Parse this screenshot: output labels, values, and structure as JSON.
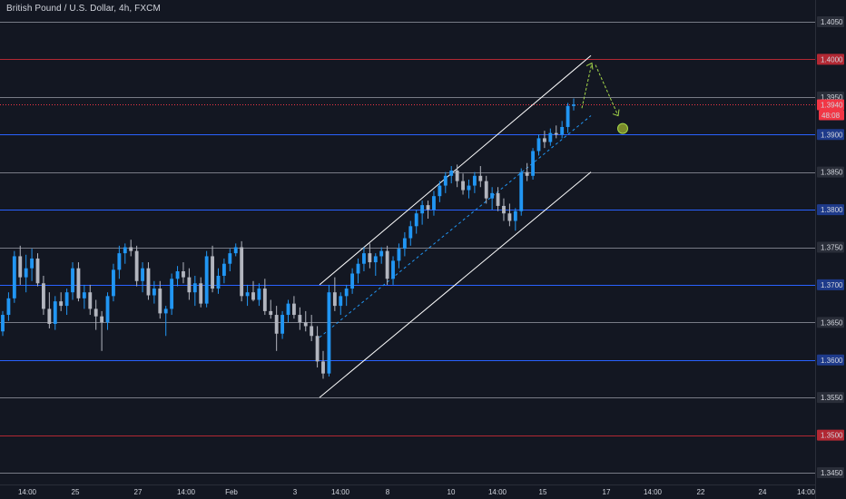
{
  "header": {
    "title": "British Pound / U.S. Dollar, 4h, FXCM"
  },
  "chart_data": {
    "type": "candlestick",
    "title": "British Pound / U.S. Dollar, 4h, FXCM",
    "ylim": [
      1.3438,
      1.4105
    ],
    "y_ticks": [
      {
        "value": 1.405,
        "label": "1.4050",
        "style": "gray"
      },
      {
        "value": 1.4,
        "label": "1.4000",
        "style": "red"
      },
      {
        "value": 1.395,
        "label": "1.3950",
        "style": "gray"
      },
      {
        "value": 1.39,
        "label": "1.3900",
        "style": "blue"
      },
      {
        "value": 1.385,
        "label": "1.3850",
        "style": "gray"
      },
      {
        "value": 1.38,
        "label": "1.3800",
        "style": "blue"
      },
      {
        "value": 1.375,
        "label": "1.3750",
        "style": "gray"
      },
      {
        "value": 1.37,
        "label": "1.3700",
        "style": "blue"
      },
      {
        "value": 1.365,
        "label": "1.3650",
        "style": "gray"
      },
      {
        "value": 1.36,
        "label": "1.3600",
        "style": "blue"
      },
      {
        "value": 1.355,
        "label": "1.3550",
        "style": "gray"
      },
      {
        "value": 1.35,
        "label": "1.3500",
        "style": "red"
      },
      {
        "value": 1.345,
        "label": "1.3450",
        "style": "gray"
      }
    ],
    "current_price": {
      "value": 1.394,
      "label": "1.3940",
      "countdown": "48:08"
    },
    "x_ticks": [
      "14:00",
      "25",
      "27",
      "14:00",
      "Feb",
      "3",
      "14:00",
      "8",
      "10",
      "14:00",
      "15",
      "17",
      "14:00",
      "22",
      "24",
      "14:00"
    ],
    "candles": [
      [
        1.3638,
        1.3665,
        1.3632,
        1.366
      ],
      [
        1.366,
        1.369,
        1.3652,
        1.3682
      ],
      [
        1.3682,
        1.3745,
        1.3676,
        1.3738
      ],
      [
        1.3738,
        1.3752,
        1.37,
        1.371
      ],
      [
        1.371,
        1.374,
        1.369,
        1.3722
      ],
      [
        1.3722,
        1.3748,
        1.3705,
        1.3735
      ],
      [
        1.3735,
        1.3742,
        1.3698,
        1.3702
      ],
      [
        1.3702,
        1.3712,
        1.366,
        1.3668
      ],
      [
        1.3668,
        1.369,
        1.3642,
        1.3648
      ],
      [
        1.3648,
        1.3685,
        1.364,
        1.3678
      ],
      [
        1.3678,
        1.369,
        1.3665,
        1.3672
      ],
      [
        1.3672,
        1.3695,
        1.366,
        1.369
      ],
      [
        1.369,
        1.373,
        1.368,
        1.3722
      ],
      [
        1.3722,
        1.373,
        1.3678,
        1.3682
      ],
      [
        1.3682,
        1.37,
        1.3668,
        1.369
      ],
      [
        1.369,
        1.37,
        1.366,
        1.3668
      ],
      [
        1.3668,
        1.368,
        1.364,
        1.3658
      ],
      [
        1.3658,
        1.3665,
        1.3612,
        1.365
      ],
      [
        1.365,
        1.369,
        1.364,
        1.3685
      ],
      [
        1.3685,
        1.3728,
        1.3678,
        1.372
      ],
      [
        1.372,
        1.3752,
        1.3708,
        1.3742
      ],
      [
        1.3742,
        1.3755,
        1.3728,
        1.375
      ],
      [
        1.375,
        1.376,
        1.3738,
        1.3745
      ],
      [
        1.3745,
        1.3752,
        1.3698,
        1.3705
      ],
      [
        1.3705,
        1.373,
        1.369,
        1.3722
      ],
      [
        1.3722,
        1.373,
        1.368,
        1.3686
      ],
      [
        1.3686,
        1.3705,
        1.3675,
        1.3695
      ],
      [
        1.3695,
        1.3705,
        1.3655,
        1.3662
      ],
      [
        1.3662,
        1.3672,
        1.3632,
        1.3668
      ],
      [
        1.3668,
        1.3715,
        1.366,
        1.3708
      ],
      [
        1.3708,
        1.3725,
        1.3698,
        1.3718
      ],
      [
        1.3718,
        1.373,
        1.3702,
        1.371
      ],
      [
        1.371,
        1.3722,
        1.368,
        1.369
      ],
      [
        1.369,
        1.3712,
        1.3672,
        1.3702
      ],
      [
        1.3702,
        1.371,
        1.367,
        1.3675
      ],
      [
        1.3675,
        1.3745,
        1.367,
        1.3738
      ],
      [
        1.3738,
        1.3752,
        1.369,
        1.3695
      ],
      [
        1.3695,
        1.3722,
        1.3688,
        1.3712
      ],
      [
        1.3712,
        1.3735,
        1.3702,
        1.3728
      ],
      [
        1.3728,
        1.3748,
        1.3718,
        1.3742
      ],
      [
        1.3742,
        1.3755,
        1.3738,
        1.375
      ],
      [
        1.375,
        1.3758,
        1.3678,
        1.3685
      ],
      [
        1.3685,
        1.37,
        1.3672,
        1.369
      ],
      [
        1.369,
        1.3705,
        1.3678,
        1.368
      ],
      [
        1.368,
        1.3702,
        1.3672,
        1.3695
      ],
      [
        1.3695,
        1.3708,
        1.366,
        1.3665
      ],
      [
        1.3665,
        1.368,
        1.3655,
        1.366
      ],
      [
        1.366,
        1.3672,
        1.3612,
        1.3635
      ],
      [
        1.3635,
        1.3665,
        1.3628,
        1.366
      ],
      [
        1.366,
        1.368,
        1.365,
        1.3675
      ],
      [
        1.3675,
        1.3685,
        1.3655,
        1.366
      ],
      [
        1.366,
        1.367,
        1.364,
        1.365
      ],
      [
        1.365,
        1.3665,
        1.3638,
        1.3645
      ],
      [
        1.3645,
        1.366,
        1.3625,
        1.3632
      ],
      [
        1.3632,
        1.3645,
        1.359,
        1.3598
      ],
      [
        1.3598,
        1.3612,
        1.3575,
        1.3582
      ],
      [
        1.3582,
        1.37,
        1.3578,
        1.369
      ],
      [
        1.369,
        1.371,
        1.3665,
        1.3672
      ],
      [
        1.3672,
        1.369,
        1.366,
        1.3685
      ],
      [
        1.3685,
        1.37,
        1.3672,
        1.3695
      ],
      [
        1.3695,
        1.3722,
        1.3688,
        1.3715
      ],
      [
        1.3715,
        1.3735,
        1.3702,
        1.3728
      ],
      [
        1.3728,
        1.375,
        1.3718,
        1.3742
      ],
      [
        1.3742,
        1.3755,
        1.3722,
        1.373
      ],
      [
        1.373,
        1.3742,
        1.3712,
        1.3738
      ],
      [
        1.3738,
        1.375,
        1.3728,
        1.3745
      ],
      [
        1.3745,
        1.3752,
        1.37,
        1.3708
      ],
      [
        1.3708,
        1.3738,
        1.37,
        1.3732
      ],
      [
        1.3732,
        1.3755,
        1.3722,
        1.3748
      ],
      [
        1.3748,
        1.377,
        1.3738,
        1.3762
      ],
      [
        1.3762,
        1.3785,
        1.3752,
        1.3778
      ],
      [
        1.3778,
        1.38,
        1.3768,
        1.3795
      ],
      [
        1.3795,
        1.3812,
        1.378,
        1.3806
      ],
      [
        1.3806,
        1.3812,
        1.3788,
        1.38
      ],
      [
        1.38,
        1.3825,
        1.3792,
        1.3818
      ],
      [
        1.3818,
        1.3838,
        1.381,
        1.3832
      ],
      [
        1.3832,
        1.385,
        1.3822,
        1.3845
      ],
      [
        1.3845,
        1.3858,
        1.3835,
        1.3852
      ],
      [
        1.3852,
        1.386,
        1.383,
        1.3838
      ],
      [
        1.3838,
        1.3848,
        1.382,
        1.3826
      ],
      [
        1.3826,
        1.384,
        1.3815,
        1.3832
      ],
      [
        1.3832,
        1.385,
        1.3822,
        1.3845
      ],
      [
        1.3845,
        1.3858,
        1.383,
        1.3838
      ],
      [
        1.3838,
        1.3845,
        1.3808,
        1.3815
      ],
      [
        1.3815,
        1.383,
        1.38,
        1.3822
      ],
      [
        1.3822,
        1.383,
        1.3798,
        1.3805
      ],
      [
        1.3805,
        1.3815,
        1.3785,
        1.3795
      ],
      [
        1.3795,
        1.3808,
        1.3778,
        1.3785
      ],
      [
        1.3785,
        1.3802,
        1.3772,
        1.3798
      ],
      [
        1.3798,
        1.3855,
        1.3792,
        1.385
      ],
      [
        1.385,
        1.3862,
        1.3838,
        1.3845
      ],
      [
        1.3845,
        1.3882,
        1.384,
        1.3878
      ],
      [
        1.3878,
        1.39,
        1.3872,
        1.3895
      ],
      [
        1.3895,
        1.3905,
        1.3882,
        1.389
      ],
      [
        1.389,
        1.3908,
        1.3885,
        1.3902
      ],
      [
        1.3902,
        1.3912,
        1.3895,
        1.39
      ],
      [
        1.39,
        1.3918,
        1.3895,
        1.391
      ],
      [
        1.391,
        1.3942,
        1.3902,
        1.3938
      ],
      [
        1.3938,
        1.3948,
        1.3932,
        1.394
      ]
    ],
    "annotations": {
      "channel_upper": [
        [
          0.0,
          1.37
        ],
        [
          1.0,
          1.4005
        ]
      ],
      "channel_lower": [
        [
          0.0,
          1.355
        ],
        [
          1.0,
          1.385
        ]
      ],
      "channel_mid_dashed": [
        [
          0.0,
          1.363
        ],
        [
          1.0,
          1.3925
        ]
      ],
      "projection_up": [
        [
          1.3935
        ],
        [
          1.3995
        ]
      ],
      "projection_down": [
        [
          1.3995
        ],
        [
          1.3925
        ]
      ],
      "target_marker": 1.3908
    }
  },
  "colors": {
    "background": "#131722",
    "up": "#2196f3",
    "down": "#b2b5be",
    "gray_line": "#787b86",
    "red_line": "#b22833",
    "blue_line": "#2962ff",
    "current": "#f23645",
    "drawing": "#ffffff",
    "projection": "#a5d84a",
    "target_fill": "#7a8a2a"
  }
}
